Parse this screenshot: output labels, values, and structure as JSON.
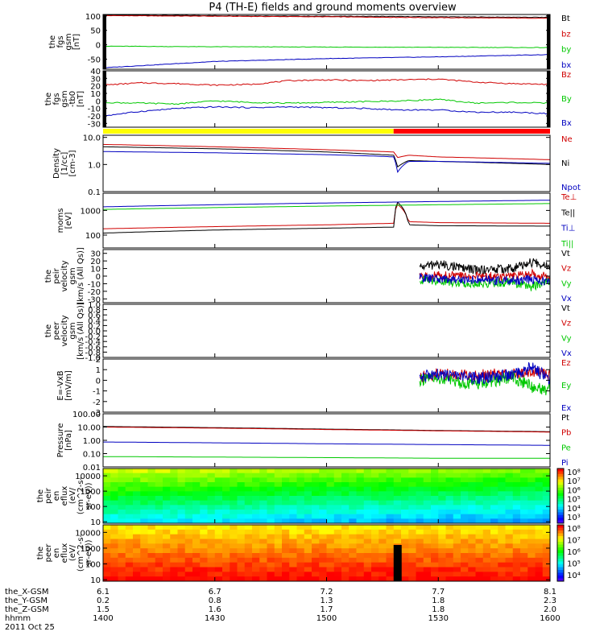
{
  "title": "P4 (TH-E) fields and ground moments overview",
  "chart_data": [
    {
      "type": "line",
      "id": "fgs_gsm",
      "ylabel": [
        "the",
        "fgs",
        "gsm",
        "[nT]"
      ],
      "yticks": [
        100,
        50,
        0,
        -50
      ],
      "ylim": [
        -85,
        105
      ],
      "series": [
        {
          "name": "Bt",
          "color": "#000000",
          "x": [
            1400,
            1430,
            1500,
            1530,
            1600
          ],
          "y": [
            103,
            101,
            99,
            97,
            95
          ]
        },
        {
          "name": "bz",
          "color": "#d00000",
          "x": [
            1400,
            1430,
            1500,
            1530,
            1600
          ],
          "y": [
            101,
            99,
            97,
            94,
            92
          ]
        },
        {
          "name": "by",
          "color": "#00c800",
          "x": [
            1400,
            1430,
            1500,
            1530,
            1600
          ],
          "y": [
            -5,
            -7,
            -8,
            -9,
            -10
          ]
        },
        {
          "name": "bx",
          "color": "#0000c0",
          "x": [
            1400,
            1430,
            1500,
            1530,
            1600
          ],
          "y": [
            -80,
            -58,
            -48,
            -42,
            -34
          ]
        }
      ]
    },
    {
      "type": "line",
      "id": "fgs_gsm_tb0",
      "ylabel": [
        "the",
        "fgs",
        "gsm",
        "-tb0",
        "[nT]"
      ],
      "yticks": [
        40,
        30,
        20,
        10,
        0,
        -10,
        -20,
        -30
      ],
      "ylim": [
        -35,
        40
      ],
      "series": [
        {
          "name": "Bz",
          "color": "#d00000",
          "x": [
            1400,
            1410,
            1420,
            1430,
            1440,
            1450,
            1500,
            1510,
            1520,
            1530,
            1540,
            1550,
            1600
          ],
          "y": [
            21,
            24,
            23,
            21,
            22,
            27,
            28,
            27,
            28,
            29,
            25,
            23,
            22
          ]
        },
        {
          "name": "By",
          "color": "#00c800",
          "x": [
            1400,
            1410,
            1420,
            1430,
            1440,
            1450,
            1500,
            1510,
            1520,
            1530,
            1540,
            1550,
            1600
          ],
          "y": [
            -2,
            -3,
            -4,
            0,
            -2,
            -3,
            -2,
            -1,
            0,
            2,
            -3,
            -2,
            -3
          ]
        },
        {
          "name": "Bx",
          "color": "#0000c0",
          "x": [
            1400,
            1410,
            1420,
            1430,
            1440,
            1450,
            1500,
            1510,
            1520,
            1530,
            1540,
            1550,
            1600
          ],
          "y": [
            -20,
            -14,
            -10,
            -8,
            -9,
            -8,
            -9,
            -10,
            -12,
            -12,
            -15,
            -15,
            -17
          ]
        }
      ]
    },
    {
      "type": "line",
      "id": "density",
      "yscale": "log",
      "ylabel": [
        "Density",
        "[1/cc]",
        "[cm-3]"
      ],
      "yticks": [
        "10.0",
        "1.0",
        "0.1"
      ],
      "ylim": [
        0.1,
        12
      ],
      "series": [
        {
          "name": "Ne",
          "color": "#d00000",
          "x": [
            1400,
            1430,
            1500,
            1515,
            1518,
            1519,
            1522,
            1530,
            1600
          ],
          "y": [
            5.5,
            4.5,
            3.5,
            3.0,
            2.9,
            1.8,
            2.2,
            1.9,
            1.5
          ]
        },
        {
          "name": "Ni",
          "color": "#000000",
          "x": [
            1400,
            1430,
            1500,
            1515,
            1518,
            1519,
            1522,
            1530,
            1600
          ],
          "y": [
            4.5,
            3.8,
            2.9,
            2.3,
            2.2,
            0.8,
            1.4,
            1.3,
            1.0
          ]
        },
        {
          "name": "Npot",
          "color": "#0000c0",
          "x": [
            1400,
            1430,
            1500,
            1515,
            1518,
            1519,
            1522,
            1530,
            1600
          ],
          "y": [
            3.0,
            2.7,
            2.3,
            2.0,
            1.9,
            0.5,
            1.3,
            1.3,
            1.1
          ]
        }
      ]
    },
    {
      "type": "line",
      "id": "temperature",
      "yscale": "log",
      "ylabel": [
        "moms",
        "[eV]"
      ],
      "yticks": [
        1000,
        100
      ],
      "ylim": [
        30,
        5000
      ],
      "series": [
        {
          "name": "Te⊥",
          "color": "#d00000",
          "x": [
            1400,
            1430,
            1500,
            1518,
            1519,
            1522,
            1530,
            1600
          ],
          "y": [
            180,
            220,
            260,
            300,
            1800,
            350,
            320,
            300
          ]
        },
        {
          "name": "Te||",
          "color": "#000000",
          "x": [
            1400,
            1430,
            1500,
            1518,
            1519,
            1522,
            1530,
            1600
          ],
          "y": [
            120,
            160,
            190,
            210,
            2200,
            260,
            240,
            230
          ]
        },
        {
          "name": "Ti⊥",
          "color": "#0000c0",
          "x": [
            1400,
            1430,
            1500,
            1530,
            1600
          ],
          "y": [
            1400,
            1700,
            2000,
            2300,
            2600
          ]
        },
        {
          "name": "Ti||",
          "color": "#00c800",
          "x": [
            1400,
            1430,
            1500,
            1530,
            1600
          ],
          "y": [
            1100,
            1300,
            1500,
            1700,
            1900
          ]
        }
      ]
    },
    {
      "type": "line",
      "id": "peir_velocity",
      "ylabel": [
        "the",
        "peir",
        "velocity",
        "gsm",
        "[km/s (All Qs)]"
      ],
      "yticks": [
        30,
        20,
        10,
        0,
        -10,
        -20,
        -30
      ],
      "ylim": [
        -35,
        35
      ],
      "series": [
        {
          "name": "Vt",
          "color": "#000000",
          "x": [
            1525,
            1530,
            1540,
            1550,
            1555,
            1600
          ],
          "y": [
            12,
            16,
            8,
            10,
            18,
            14
          ]
        },
        {
          "name": "Vz",
          "color": "#d00000",
          "x": [
            1525,
            1530,
            1540,
            1550,
            1555,
            1600
          ],
          "y": [
            -2,
            1,
            0,
            -1,
            3,
            -2
          ]
        },
        {
          "name": "Vy",
          "color": "#00c800",
          "x": [
            1525,
            1530,
            1540,
            1550,
            1555,
            1600
          ],
          "y": [
            -5,
            -6,
            -10,
            -8,
            -14,
            -6
          ]
        },
        {
          "name": "Vx",
          "color": "#0000c0",
          "x": [
            1525,
            1530,
            1540,
            1550,
            1555,
            1600
          ],
          "y": [
            -2,
            -4,
            -5,
            -6,
            -4,
            -8
          ]
        }
      ]
    },
    {
      "type": "line",
      "id": "peer_velocity",
      "ylabel": [
        "the",
        "peer",
        "velocity",
        "gsm",
        "[km/s (All Qs)]"
      ],
      "yticks": [
        "1.0",
        "0.8",
        "0.6",
        "0.4",
        "0.2",
        "0.0",
        "-0.2",
        "-0.4",
        "-0.6",
        "-0.8",
        "-1.0"
      ],
      "ylim": [
        -1,
        1
      ],
      "series": [
        {
          "name": "Vt",
          "color": "#000000",
          "x": [],
          "y": []
        },
        {
          "name": "Vz",
          "color": "#d00000",
          "x": [],
          "y": []
        },
        {
          "name": "Vy",
          "color": "#00c800",
          "x": [],
          "y": []
        },
        {
          "name": "Vx",
          "color": "#0000c0",
          "x": [],
          "y": []
        }
      ]
    },
    {
      "type": "line",
      "id": "efield",
      "ylabel": [
        "E=-VxB",
        "[mV/m]"
      ],
      "yticks": [
        2,
        1,
        0,
        -1,
        -2,
        -3
      ],
      "ylim": [
        -3,
        2
      ],
      "series": [
        {
          "name": "Ez",
          "color": "#d00000",
          "x": [
            1525,
            1530,
            1540,
            1550,
            1555,
            1600
          ],
          "y": [
            0.2,
            0.6,
            0.4,
            0.6,
            0.9,
            0.5
          ]
        },
        {
          "name": "Ey",
          "color": "#00c800",
          "x": [
            1525,
            1530,
            1540,
            1550,
            1555,
            1600
          ],
          "y": [
            0.0,
            0.1,
            -0.4,
            0.3,
            -0.6,
            -0.9
          ]
        },
        {
          "name": "Ex",
          "color": "#0000c0",
          "x": [
            1525,
            1530,
            1540,
            1550,
            1555,
            1600
          ],
          "y": [
            0.3,
            0.5,
            0.2,
            0.5,
            1.2,
            0.1
          ]
        }
      ]
    },
    {
      "type": "line",
      "id": "pressure",
      "yscale": "log",
      "ylabel": [
        "Pressure",
        "[nPa]"
      ],
      "yticks": [
        "100.00",
        "10.00",
        "1.00",
        "0.10",
        "0.01"
      ],
      "ylim": [
        0.01,
        100
      ],
      "series": [
        {
          "name": "Pt",
          "color": "#000000",
          "x": [
            1400,
            1430,
            1500,
            1530,
            1600
          ],
          "y": [
            11,
            9,
            7,
            5.5,
            4.5
          ]
        },
        {
          "name": "Pb",
          "color": "#d00000",
          "x": [
            1400,
            1430,
            1500,
            1530,
            1600
          ],
          "y": [
            10,
            8.3,
            6.5,
            5.2,
            4.2
          ]
        },
        {
          "name": "Pe",
          "color": "#00c800",
          "x": [
            1400,
            1430,
            1500,
            1530,
            1600
          ],
          "y": [
            0.06,
            0.055,
            0.05,
            0.045,
            0.045
          ]
        },
        {
          "name": "Pi",
          "color": "#0000c0",
          "x": [
            1400,
            1430,
            1500,
            1530,
            1600
          ],
          "y": [
            0.75,
            0.65,
            0.55,
            0.48,
            0.42
          ]
        }
      ]
    },
    {
      "type": "heatmap",
      "id": "peir_en_eflux",
      "yscale": "log",
      "ylabel": [
        "the",
        "peir",
        "en",
        "eflux",
        "(eV/",
        "(cm^2-s-",
        "sr-eV))"
      ],
      "yticks": [
        10000,
        1000,
        100,
        10
      ],
      "ylim": [
        8,
        30000
      ],
      "colorbar_ticks": [
        "10⁸",
        "10⁷",
        "10⁶",
        "10⁵",
        "10⁴",
        "10³"
      ]
    },
    {
      "type": "heatmap",
      "id": "peer_en_eflux",
      "yscale": "log",
      "ylabel": [
        "the",
        "peer",
        "en",
        "eflux",
        "(eV/",
        "(cm^2-s-",
        "sr-eV))"
      ],
      "yticks": [
        10000,
        1000,
        100,
        10
      ],
      "ylim": [
        8,
        30000
      ],
      "colorbar_ticks": [
        "10⁸",
        "10⁷",
        "10⁶",
        "10⁵",
        "10⁴"
      ]
    }
  ],
  "xaxis": {
    "ticks_hhmm": [
      "1400",
      "1430",
      "1500",
      "1530",
      "1600"
    ],
    "rows": [
      {
        "label": "the_X-GSM",
        "values": [
          "6.1",
          "6.7",
          "7.2",
          "7.7",
          "8.1"
        ]
      },
      {
        "label": "the_Y-GSM",
        "values": [
          "0.2",
          "0.8",
          "1.3",
          "1.8",
          "2.3"
        ]
      },
      {
        "label": "the_Z-GSM",
        "values": [
          "1.5",
          "1.6",
          "1.7",
          "1.8",
          "2.0"
        ]
      },
      {
        "label": "hhmm",
        "values": [
          "1400",
          "1430",
          "1500",
          "1530",
          "1600"
        ]
      }
    ],
    "date": "2011 Oct 25"
  }
}
